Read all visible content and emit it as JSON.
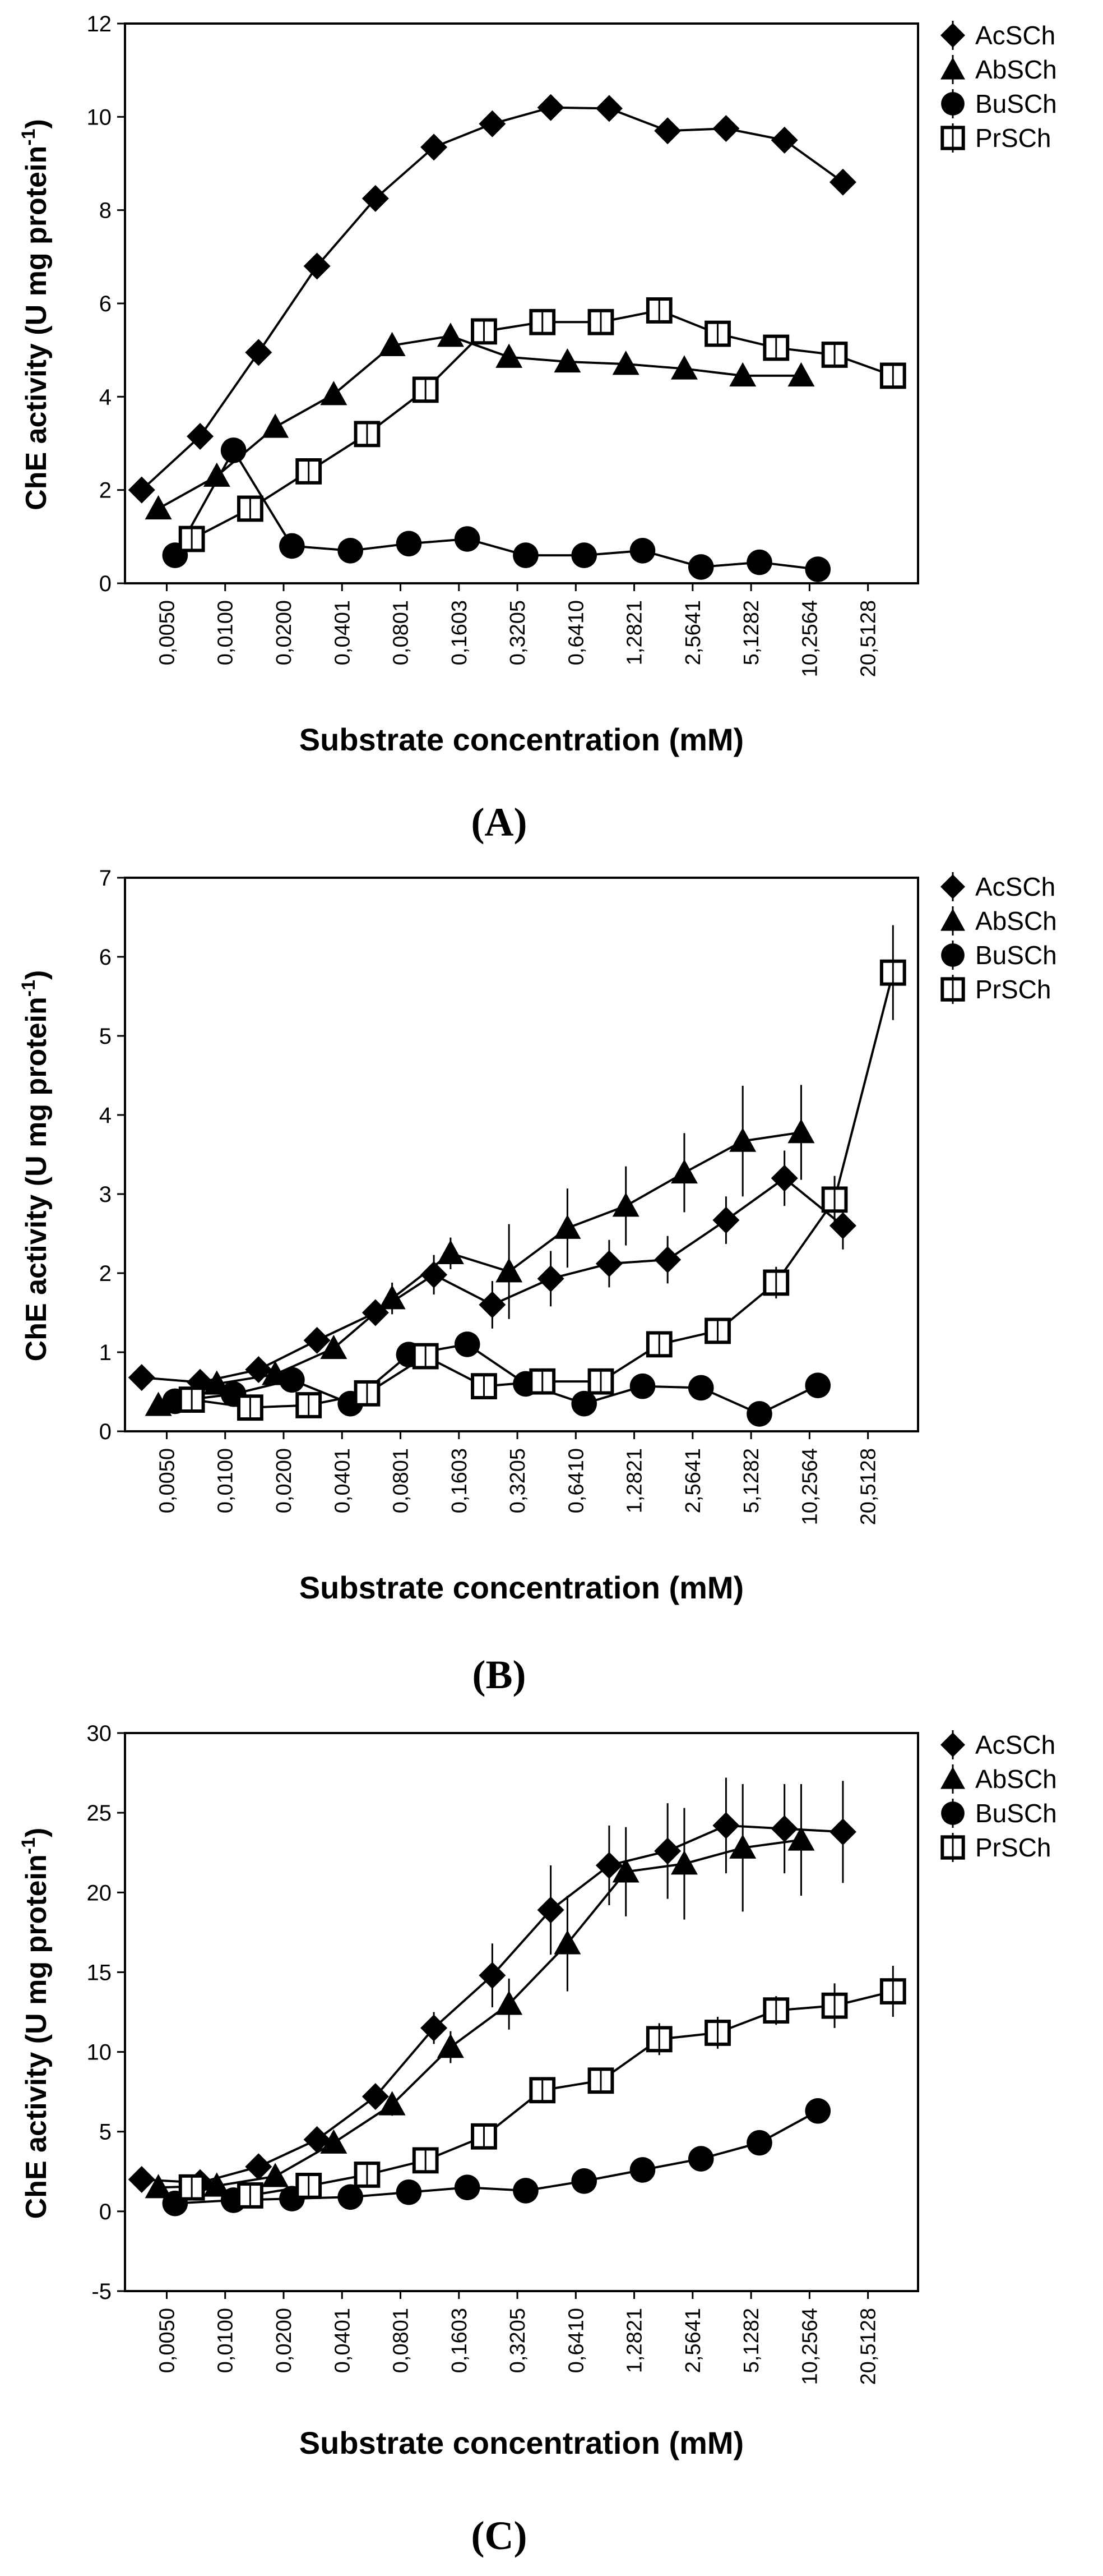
{
  "chart_data": [
    {
      "panel": "(A)",
      "type": "line",
      "ylabel": "ChE activity  (U mg protein",
      "ylabel_sup": "-1",
      "ylabel_end": ")",
      "xlabel": "Substrate concentration (mM)",
      "ylim": [
        0,
        12
      ],
      "yticks": [
        "0",
        "2",
        "4",
        "6",
        "8",
        "10",
        "12"
      ],
      "categories": [
        "0,0050",
        "0,0100",
        "0,0200",
        "0,0401",
        "0,0801",
        "0,1603",
        "0,3205",
        "0,6410",
        "1,2821",
        "2,5641",
        "5,1282",
        "10,2564",
        "20,5128"
      ],
      "legend": [
        "AcSCh",
        "AbSCh",
        "BuSCh",
        "PrSCh"
      ],
      "series": [
        {
          "name": "AcSCh",
          "marker": "diamond",
          "x": [
            -0.1,
            0.6,
            1.3,
            2.0,
            2.7,
            3.4,
            4.1,
            4.8,
            5.5,
            6.2,
            6.9,
            7.6,
            8.3
          ],
          "y": [
            2.0,
            3.15,
            4.95,
            6.8,
            8.25,
            9.35,
            9.85,
            10.2,
            10.18,
            9.7,
            9.75,
            9.5,
            8.6
          ]
        },
        {
          "name": "AbSCh",
          "marker": "triangle",
          "x": [
            0.1,
            0.8,
            1.5,
            2.2,
            2.9,
            3.6,
            4.3,
            5.0,
            5.7,
            6.4,
            7.1,
            7.8
          ],
          "y": [
            1.6,
            2.3,
            3.35,
            4.05,
            5.1,
            5.3,
            4.85,
            4.75,
            4.7,
            4.6,
            4.45,
            4.45
          ]
        },
        {
          "name": "BuSCh",
          "marker": "circle",
          "x": [
            0.3,
            1.0,
            1.7,
            2.4,
            3.1,
            3.8,
            4.5,
            5.2,
            5.9,
            6.6,
            7.3,
            8.0
          ],
          "y": [
            0.6,
            2.85,
            0.8,
            0.7,
            0.85,
            0.95,
            0.6,
            0.6,
            0.7,
            0.35,
            0.45,
            0.3
          ]
        },
        {
          "name": "PrSCh",
          "marker": "open-square",
          "x": [
            0.5,
            1.2,
            1.9,
            2.6,
            3.3,
            4.0,
            4.7,
            5.4,
            6.1,
            6.8,
            7.5,
            8.2,
            8.9
          ],
          "y": [
            0.95,
            1.6,
            2.4,
            3.2,
            4.15,
            5.4,
            5.6,
            5.6,
            5.85,
            5.35,
            5.05,
            4.9,
            4.45
          ]
        }
      ]
    },
    {
      "panel": "(B)",
      "type": "line",
      "ylabel": "ChE activity (U mg protein",
      "ylabel_sup": "-1",
      "ylabel_end": ")",
      "xlabel": "Substrate concentration (mM)",
      "ylim": [
        0,
        7
      ],
      "yticks": [
        "0",
        "1",
        "2",
        "3",
        "4",
        "5",
        "6",
        "7"
      ],
      "categories": [
        "0,0050",
        "0,0100",
        "0,0200",
        "0,0401",
        "0,0801",
        "0,1603",
        "0,3205",
        "0,6410",
        "1,2821",
        "2,5641",
        "5,1282",
        "10,2564",
        "20,5128"
      ],
      "legend": [
        "AcSCh",
        "AbSCh",
        "BuSCh",
        "PrSCh"
      ],
      "series": [
        {
          "name": "AcSCh",
          "marker": "diamond",
          "x": [
            -0.1,
            0.6,
            1.3,
            2.0,
            2.7,
            3.4,
            4.1,
            4.8,
            5.5,
            6.2,
            6.9,
            7.6,
            8.3
          ],
          "y": [
            0.68,
            0.62,
            0.78,
            1.15,
            1.5,
            1.98,
            1.6,
            1.93,
            2.12,
            2.17,
            2.67,
            3.2,
            2.6
          ],
          "err": [
            0.05,
            0.05,
            0.1,
            0.1,
            0.15,
            0.25,
            0.3,
            0.35,
            0.3,
            0.3,
            0.3,
            0.35,
            0.3
          ]
        },
        {
          "name": "AbSCh",
          "marker": "triangle",
          "x": [
            0.1,
            0.8,
            1.5,
            2.2,
            2.9,
            3.6,
            4.3,
            5.0,
            5.7,
            6.4,
            7.1,
            7.8
          ],
          "y": [
            0.33,
            0.6,
            0.72,
            1.05,
            1.68,
            2.25,
            2.02,
            2.57,
            2.85,
            3.27,
            3.67,
            3.78
          ],
          "err": [
            0.05,
            0.05,
            0.1,
            0.1,
            0.2,
            0.2,
            0.6,
            0.5,
            0.5,
            0.5,
            0.7,
            0.6
          ]
        },
        {
          "name": "BuSCh",
          "marker": "circle",
          "x": [
            0.3,
            1.0,
            1.7,
            2.4,
            3.1,
            3.8,
            4.5,
            5.2,
            5.9,
            6.6,
            7.3,
            8.0
          ],
          "y": [
            0.38,
            0.47,
            0.65,
            0.35,
            0.97,
            1.1,
            0.6,
            0.35,
            0.57,
            0.55,
            0.22,
            0.58
          ]
        },
        {
          "name": "PrSCh",
          "marker": "open-square",
          "x": [
            0.5,
            1.2,
            1.9,
            2.6,
            3.3,
            4.0,
            4.7,
            5.4,
            6.1,
            6.8,
            7.5,
            8.2,
            8.9
          ],
          "y": [
            0.4,
            0.3,
            0.33,
            0.48,
            0.95,
            0.57,
            0.63,
            0.63,
            1.1,
            1.27,
            1.88,
            2.93,
            5.8
          ],
          "err": [
            0.05,
            0.05,
            0.05,
            0.1,
            0.15,
            0.1,
            0.1,
            0.1,
            0.1,
            0.15,
            0.2,
            0.3,
            0.6
          ]
        }
      ]
    },
    {
      "panel": "(C)",
      "type": "line",
      "ylabel": "ChE activity (U mg protein",
      "ylabel_sup": "-1",
      "ylabel_end": ")",
      "xlabel": "Substrate concentration (mM)",
      "ylim": [
        -5,
        30
      ],
      "yticks": [
        "-5",
        "0",
        "5",
        "10",
        "15",
        "20",
        "25",
        "30"
      ],
      "categories": [
        "0,0050",
        "0,0100",
        "0,0200",
        "0,0401",
        "0,0801",
        "0,1603",
        "0,3205",
        "0,6410",
        "1,2821",
        "2,5641",
        "5,1282",
        "10,2564",
        "20,5128"
      ],
      "legend": [
        "AcSCh",
        "AbSCh",
        "BuSCh",
        "PrSCh"
      ],
      "series": [
        {
          "name": "AcSCh",
          "marker": "diamond",
          "x": [
            -0.1,
            0.6,
            1.3,
            2.0,
            2.7,
            3.4,
            4.1,
            4.8,
            5.5,
            6.2,
            6.9,
            7.6,
            8.3
          ],
          "y": [
            2.0,
            1.8,
            2.8,
            4.5,
            7.2,
            11.5,
            14.8,
            18.9,
            21.7,
            22.6,
            24.2,
            24.0,
            23.8
          ],
          "err": [
            0.3,
            0.3,
            0.3,
            0.5,
            0.7,
            1.0,
            2.0,
            2.8,
            2.5,
            3.0,
            3.0,
            2.8,
            3.2
          ]
        },
        {
          "name": "AbSCh",
          "marker": "triangle",
          "x": [
            0.1,
            0.8,
            1.5,
            2.2,
            2.9,
            3.6,
            4.3,
            5.0,
            5.7,
            6.4,
            7.1,
            7.8
          ],
          "y": [
            1.5,
            1.6,
            2.2,
            4.3,
            6.7,
            10.3,
            13.0,
            16.8,
            21.3,
            21.8,
            22.8,
            23.3
          ],
          "err": [
            0.3,
            0.3,
            0.3,
            0.5,
            0.7,
            1.0,
            1.6,
            3.0,
            2.8,
            3.5,
            4.0,
            3.5
          ]
        },
        {
          "name": "BuSCh",
          "marker": "circle",
          "x": [
            0.3,
            1.0,
            1.7,
            2.4,
            3.1,
            3.8,
            4.5,
            5.2,
            5.9,
            6.6,
            7.3,
            8.0
          ],
          "y": [
            0.5,
            0.7,
            0.8,
            0.9,
            1.2,
            1.5,
            1.3,
            1.9,
            2.6,
            3.3,
            4.3,
            6.3
          ]
        },
        {
          "name": "PrSCh",
          "marker": "open-square",
          "x": [
            0.5,
            1.2,
            1.9,
            2.6,
            3.3,
            4.0,
            4.7,
            5.4,
            6.1,
            6.8,
            7.5,
            8.2,
            8.9
          ],
          "y": [
            1.5,
            1.0,
            1.6,
            2.3,
            3.2,
            4.7,
            7.6,
            8.2,
            10.8,
            11.2,
            12.6,
            12.9,
            13.8
          ],
          "err": [
            0.2,
            0.2,
            0.2,
            0.3,
            0.4,
            0.5,
            0.6,
            0.7,
            1.0,
            1.0,
            0.9,
            1.4,
            1.6
          ]
        }
      ]
    }
  ]
}
